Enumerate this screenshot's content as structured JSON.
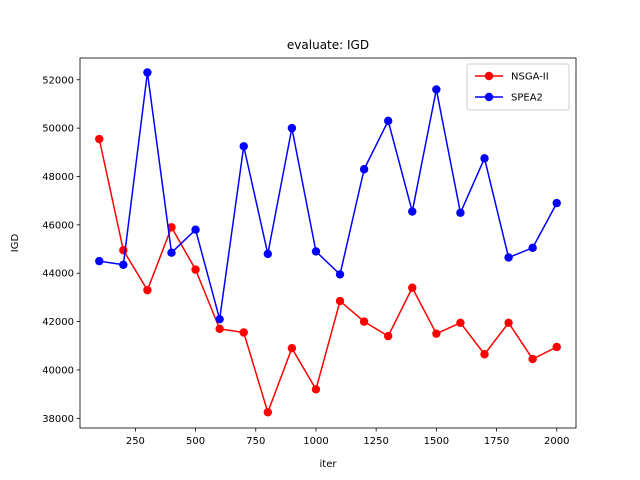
{
  "chart_data": {
    "type": "line",
    "title": "evaluate: IGD",
    "xlabel": "iter",
    "ylabel": "IGD",
    "xlim": [
      20,
      2080
    ],
    "ylim": [
      37600,
      52900
    ],
    "xticks": [
      250,
      500,
      750,
      1000,
      1250,
      1500,
      1750,
      2000
    ],
    "yticks": [
      38000,
      40000,
      42000,
      44000,
      46000,
      48000,
      50000,
      52000
    ],
    "grid": false,
    "legend_position": "upper right",
    "x": [
      100,
      200,
      300,
      400,
      500,
      600,
      700,
      800,
      900,
      1000,
      1100,
      1200,
      1300,
      1400,
      1500,
      1600,
      1700,
      1800,
      1900,
      2000
    ],
    "series": [
      {
        "name": "NSGA-II",
        "color": "#ff0000",
        "marker": "circle",
        "values": [
          49550,
          44950,
          43300,
          45900,
          44150,
          41700,
          41550,
          38250,
          40900,
          39200,
          42850,
          42000,
          41400,
          43400,
          41500,
          41950,
          40650,
          41950,
          40450,
          40950
        ]
      },
      {
        "name": "SPEA2",
        "color": "#0000ff",
        "marker": "circle",
        "values": [
          44500,
          44350,
          52300,
          44850,
          45800,
          42100,
          49250,
          44800,
          50000,
          44900,
          43950,
          48300,
          50300,
          46550,
          51600,
          46500,
          48750,
          44650,
          45050,
          46900
        ]
      }
    ]
  }
}
